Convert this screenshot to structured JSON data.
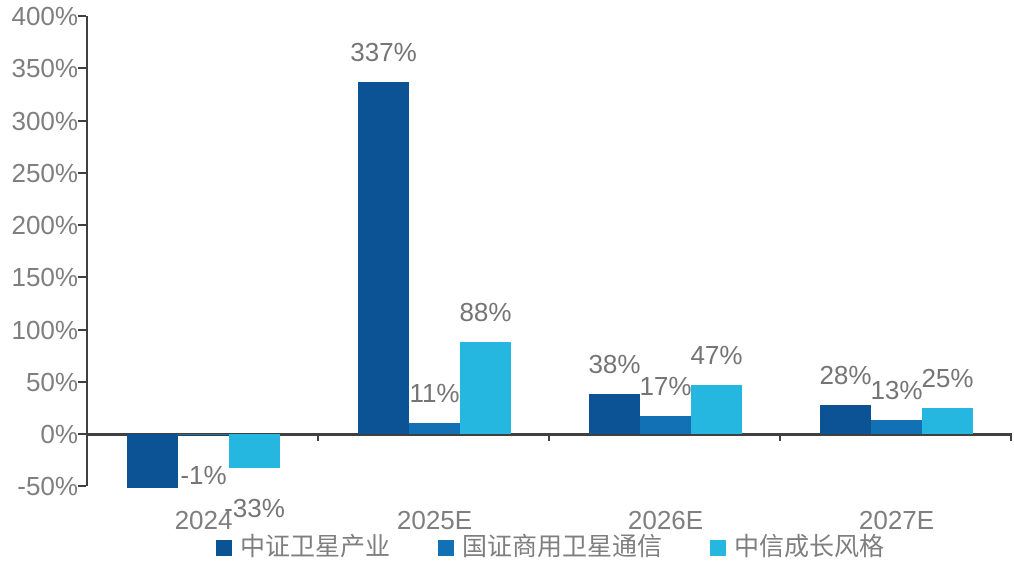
{
  "chart_data": {
    "type": "bar",
    "title": "",
    "categories": [
      "2024",
      "2025E",
      "2026E",
      "2027E"
    ],
    "series": [
      {
        "name": "中证卫星产业",
        "color": "#0B5394",
        "values": [
          -52,
          337,
          38,
          28
        ],
        "data_labels": [
          "",
          "337%",
          "38%",
          "28%"
        ]
      },
      {
        "name": "国证商用卫星通信",
        "color": "#1271B5",
        "values": [
          -1,
          11,
          17,
          13
        ],
        "data_labels": [
          "-1%",
          "11%",
          "17%",
          "13%"
        ]
      },
      {
        "name": "中信成长风格",
        "color": "#25B7E0",
        "values": [
          -33,
          88,
          47,
          25
        ],
        "data_labels": [
          "-33%",
          "88%",
          "47%",
          "25%"
        ]
      }
    ],
    "y_axis": {
      "min": -50,
      "max": 400,
      "step": 50,
      "tick_labels": [
        "400%",
        "350%",
        "300%",
        "250%",
        "200%",
        "150%",
        "100%",
        "50%",
        "0%",
        "-50%"
      ]
    },
    "x_axis": {
      "tick_labels": [
        "2024",
        "2025E",
        "2026E",
        "2027E"
      ]
    },
    "legend_position": "bottom",
    "grid": false,
    "colors": {
      "axis_line": "#404040",
      "tick_text": "#7F7F7F",
      "data_label_text": "#757575",
      "background": "#FFFFFF"
    }
  }
}
